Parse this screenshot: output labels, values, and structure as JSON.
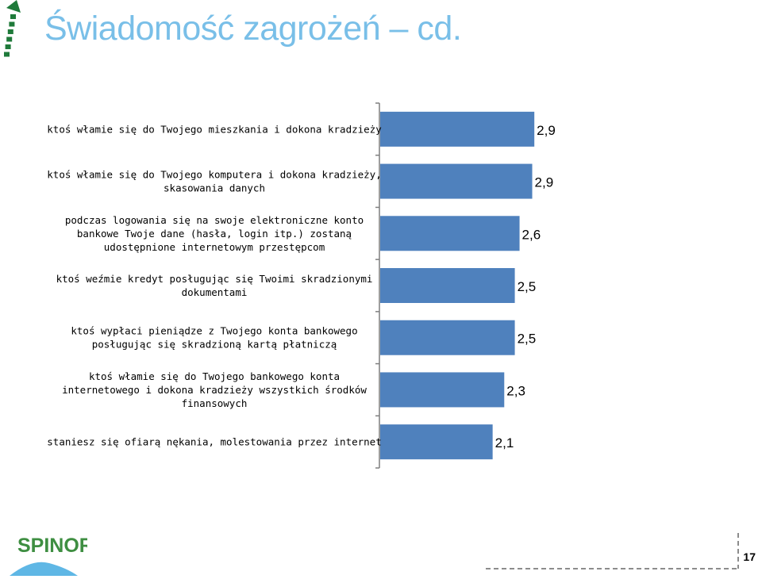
{
  "page": {
    "title": "Świadomość zagrożeń – cd.",
    "slide_number": "17",
    "logo_text": "SPINOR"
  },
  "colors": {
    "title": "#79BFE8",
    "bar": "#4F81BD",
    "text": "#000000",
    "axis": "#7F7F7F",
    "arrow": "#1F7A3A",
    "logo_green": "#3E8E41",
    "logo_blue": "#5FB7E5",
    "logo_orange": "#F29A2E"
  },
  "icons": {
    "corner": "dashed-up-arrow-icon",
    "footer": "dashed-corner-line"
  },
  "chart_data": {
    "type": "bar",
    "orientation": "horizontal",
    "categories": [
      "ktoś włamie się do Twojego mieszkania i dokona kradzieży",
      "ktoś włamie się do Twojego komputera i dokona kradzieży, skasowania danych",
      "podczas logowania się na swoje elektroniczne konto bankowe Twoje dane (hasła, login itp.) zostaną udostępnione internetowym przestępcom",
      "ktoś weźmie kredyt posługując się Twoimi skradzionymi dokumentami",
      "ktoś wypłaci pieniądze z Twojego konta bankowego posługując się skradzioną kartą płatniczą",
      "ktoś włamie się do Twojego bankowego konta internetowego i dokona kradzieży wszystkich środków finansowych",
      "staniesz się ofiarą nękania, molestowania przez internet"
    ],
    "category_lines": [
      [
        "ktoś włamie się do Twojego mieszkania i dokona kradzieży"
      ],
      [
        "ktoś włamie się do Twojego komputera i dokona kradzieży,",
        "skasowania danych"
      ],
      [
        "podczas logowania się na swoje elektroniczne konto",
        "bankowe Twoje dane (hasła, login itp.) zostaną",
        "udostępnione internetowym przestępcom"
      ],
      [
        "ktoś weźmie kredyt posługując się Twoimi skradzionymi",
        "dokumentami"
      ],
      [
        "ktoś wypłaci pieniądze z Twojego konta bankowego",
        "posługując się skradzioną kartą płatniczą"
      ],
      [
        "ktoś włamie się do Twojego bankowego konta",
        "internetowego i dokona kradzieży wszystkich środków",
        "finansowych"
      ],
      [
        "staniesz się ofiarą nękania, molestowania przez internet"
      ]
    ],
    "values": [
      2.92,
      2.88,
      2.64,
      2.55,
      2.55,
      2.35,
      2.13
    ],
    "value_labels": [
      "2,9",
      "2,9",
      "2,6",
      "2,5",
      "2,5",
      "2,3",
      "2,1"
    ],
    "xlim": [
      0,
      3.0
    ],
    "grid": false,
    "legend": "none"
  }
}
